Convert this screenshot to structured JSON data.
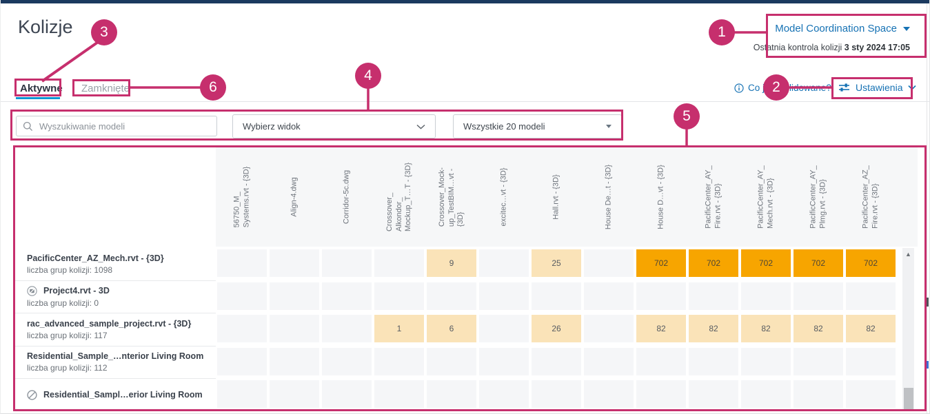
{
  "page_title": "Kolizje",
  "space": {
    "label": "Model Coordination Space"
  },
  "last_check": {
    "label": "Ostatnia kontrola kolizji",
    "value": "3 sty 2024 17:05"
  },
  "tabs": {
    "active": "Aktywne",
    "closed": "Zamknięte"
  },
  "toolbar": {
    "info_link": "Co jest kolidowane?",
    "settings_label": "Ustawienia"
  },
  "filters": {
    "search_placeholder": "Wyszukiwanie modeli",
    "view_dropdown": "Wybierz widok",
    "models_dropdown": "Wszystkie 20 modeli"
  },
  "matrix": {
    "columns": [
      "56750_M_\nSystems.rvt - {3D}",
      "Align-4.dwg",
      "Corridor-5c.dwg",
      "Crossover_\nAlkondor_\nMockup_T…T - {3D}",
      "Crossover_Mock-\nup_TestBIM…vt -\n{3D}",
      "excitec…vt - {3D}",
      "Hall.rvt - {3D}",
      "House De…t - {3D}",
      "House D…vt - {3D}",
      "PacificCenter_AY_\nFire.rvt - {3D}",
      "PacificCenter_AY_\nMech.rvt - {3D}",
      "PacificCenter_AY_\nPlmg.rvt - {3D}",
      "PacificCenter_AZ_\nFire.rvt - {3D}"
    ],
    "rows": [
      {
        "title": "PacificCenter_AZ_Mech.rvt - {3D}",
        "subtitle": "liczba grup kolizji: 1098",
        "icon": null,
        "cells": [
          null,
          null,
          null,
          null,
          {
            "v": "9",
            "l": "low"
          },
          null,
          {
            "v": "25",
            "l": "low"
          },
          null,
          {
            "v": "702",
            "l": "high"
          },
          {
            "v": "702",
            "l": "high"
          },
          {
            "v": "702",
            "l": "high"
          },
          {
            "v": "702",
            "l": "high"
          },
          {
            "v": "702",
            "l": "high"
          }
        ]
      },
      {
        "title": "Project4.rvt - 3D",
        "subtitle": "liczba grup kolizji: 0",
        "icon": "no-preview",
        "cells": [
          null,
          null,
          null,
          null,
          null,
          null,
          null,
          null,
          null,
          null,
          null,
          null,
          null
        ]
      },
      {
        "title": "rac_advanced_sample_project.rvt - {3D}",
        "subtitle": "liczba grup kolizji: 117",
        "icon": null,
        "cells": [
          null,
          null,
          null,
          {
            "v": "1",
            "l": "low"
          },
          {
            "v": "6",
            "l": "low"
          },
          null,
          {
            "v": "26",
            "l": "low"
          },
          null,
          {
            "v": "82",
            "l": "low"
          },
          {
            "v": "82",
            "l": "low"
          },
          {
            "v": "82",
            "l": "low"
          },
          {
            "v": "82",
            "l": "low"
          },
          {
            "v": "82",
            "l": "low"
          }
        ]
      },
      {
        "title": "Residential_Sample_…nterior Living Room",
        "subtitle": "liczba grup kolizji: 112",
        "icon": null,
        "cells": [
          null,
          null,
          null,
          null,
          null,
          null,
          null,
          null,
          null,
          null,
          null,
          null,
          null
        ]
      },
      {
        "title": "Residential_Sampl…erior Living Room",
        "subtitle": null,
        "icon": "not-processed",
        "cells": [
          null,
          null,
          null,
          null,
          null,
          null,
          null,
          null,
          null,
          null,
          null,
          null,
          null
        ]
      }
    ]
  },
  "scrollbar": {
    "up_arrow": "▲"
  },
  "callouts": [
    {
      "label": "1"
    },
    {
      "label": "2"
    },
    {
      "label": "3"
    },
    {
      "label": "4"
    },
    {
      "label": "5"
    },
    {
      "label": "6"
    }
  ],
  "colors": {
    "annotation": "#C62F6D",
    "accent_blue": "#1672B4",
    "tab_underline": "#0A96D4",
    "cell_low": "#FAE3B8",
    "cell_high": "#F7A500",
    "topbar": "#1B3A5F"
  }
}
